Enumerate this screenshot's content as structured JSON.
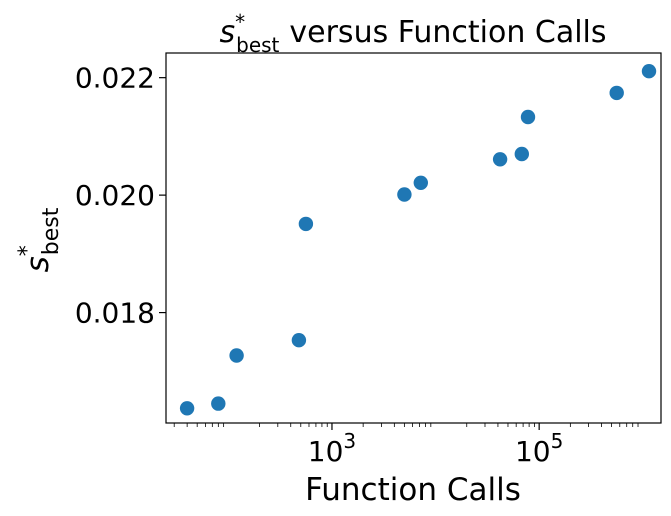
{
  "chart_data": {
    "type": "scatter",
    "title_main": "versus Function Calls",
    "symbol_base": "s",
    "symbol_sup": "*",
    "symbol_sub": "best",
    "xlabel": "Function Calls",
    "x_scale": "log",
    "xlim": [
      25,
      1500000
    ],
    "ylim": [
      0.01612,
      0.02242
    ],
    "x_ticks": [
      {
        "value": 1000,
        "base": "10",
        "exp": "3"
      },
      {
        "value": 100000,
        "base": "10",
        "exp": "5"
      }
    ],
    "y_ticks": [
      {
        "value": 0.018,
        "label": "0.018"
      },
      {
        "value": 0.02,
        "label": "0.020"
      },
      {
        "value": 0.022,
        "label": "0.022"
      }
    ],
    "grid": false,
    "marker_color": "#1f77b4",
    "points": [
      {
        "x": 40,
        "y": 0.01637
      },
      {
        "x": 80,
        "y": 0.01645
      },
      {
        "x": 120,
        "y": 0.01727
      },
      {
        "x": 480,
        "y": 0.01753
      },
      {
        "x": 560,
        "y": 0.01951
      },
      {
        "x": 5000,
        "y": 0.02001
      },
      {
        "x": 7200,
        "y": 0.02021
      },
      {
        "x": 42000,
        "y": 0.02061
      },
      {
        "x": 68000,
        "y": 0.0207
      },
      {
        "x": 78000,
        "y": 0.02133
      },
      {
        "x": 560000,
        "y": 0.02174
      },
      {
        "x": 1150000,
        "y": 0.02211
      }
    ]
  }
}
